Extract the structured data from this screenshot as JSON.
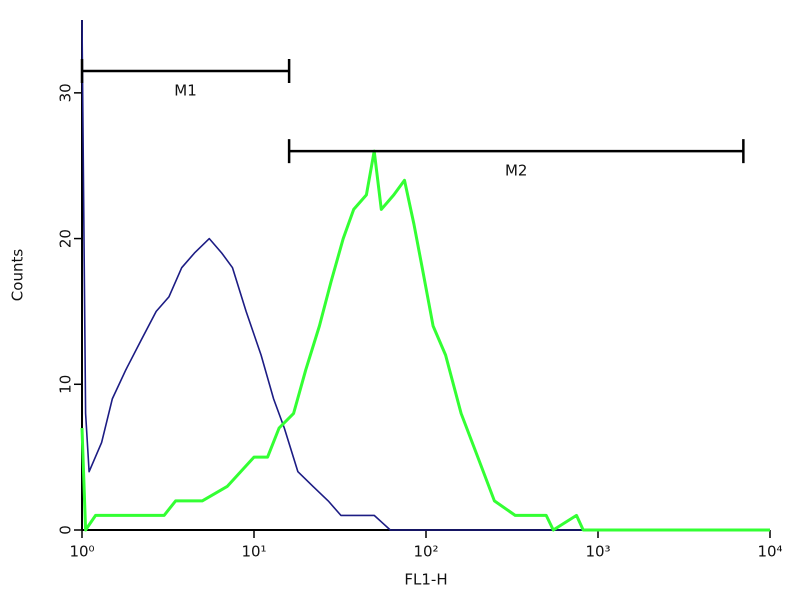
{
  "chart_data": {
    "type": "line",
    "x_label": "FL1-H",
    "y_label": "Counts",
    "xscale": "log",
    "xlim": [
      1,
      10000
    ],
    "xticks": [
      {
        "value": 1,
        "label": "10⁰"
      },
      {
        "value": 10,
        "label": "10¹"
      },
      {
        "value": 100,
        "label": "10²"
      },
      {
        "value": 1000,
        "label": "10³"
      },
      {
        "value": 10000,
        "label": "10⁴"
      }
    ],
    "ylim": [
      0,
      35
    ],
    "yticks": [
      0,
      10,
      20,
      30
    ],
    "series": [
      {
        "color": "#1c1c84",
        "x": [
          1,
          1.05,
          1.1,
          1.3,
          1.5,
          1.8,
          2.2,
          2.7,
          3.2,
          3.8,
          4.5,
          5.5,
          6.5,
          7.5,
          9,
          11,
          13,
          15,
          18,
          22,
          27,
          32,
          40,
          50,
          62,
          10000
        ],
        "values": [
          35,
          8,
          4,
          6,
          9,
          11,
          13,
          15,
          16,
          18,
          19,
          20,
          19,
          18,
          15,
          12,
          9,
          7,
          4,
          3,
          2,
          1,
          1,
          1,
          0,
          0
        ]
      },
      {
        "color": "#33ff33",
        "x": [
          1,
          1.05,
          1.2,
          2,
          3,
          3.5,
          5,
          7,
          10,
          12,
          14,
          17,
          20,
          24,
          28,
          33,
          38,
          45,
          50,
          55,
          65,
          75,
          85,
          95,
          110,
          130,
          160,
          200,
          250,
          330,
          500,
          550,
          750,
          820,
          10000
        ],
        "values": [
          7,
          0,
          1,
          1,
          1,
          2,
          2,
          3,
          5,
          5,
          7,
          8,
          11,
          14,
          17,
          20,
          22,
          23,
          26,
          22,
          23,
          24,
          21,
          18,
          14,
          12,
          8,
          5,
          2,
          1,
          1,
          0,
          1,
          0,
          0
        ]
      }
    ],
    "markers": [
      {
        "name": "M1",
        "range": [
          1,
          16
        ],
        "y": 31.5
      },
      {
        "name": "M2",
        "range": [
          16,
          7000
        ],
        "y": 26
      }
    ]
  }
}
